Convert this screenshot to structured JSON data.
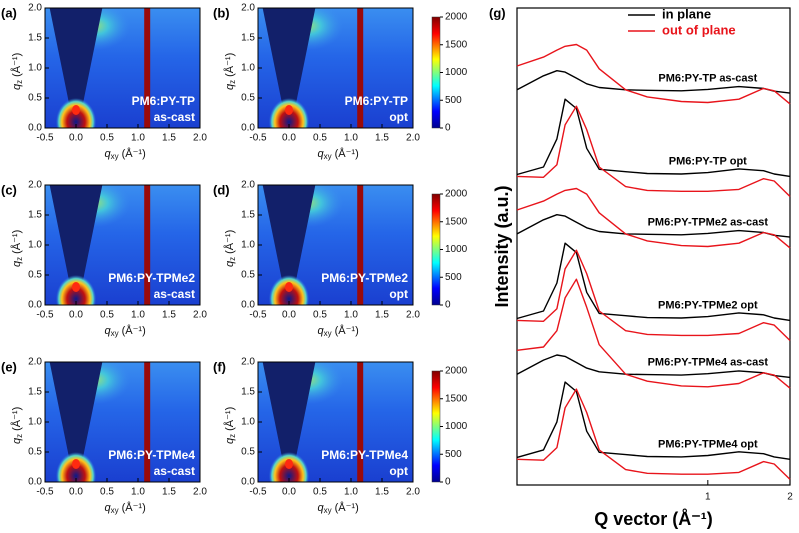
{
  "chart_data": [
    {
      "type": "image",
      "panel_label": "(a)",
      "annotation": [
        "PM6:PY-TP",
        "as-cast"
      ],
      "xlabel": {
        "main": "q",
        "sub": "xy",
        "unit": "(Å⁻¹)"
      },
      "ylabel": {
        "main": "q",
        "sub": "z",
        "unit": "(Å⁻¹)"
      },
      "xlim": [
        -0.5,
        2
      ],
      "ylim": [
        0,
        2
      ],
      "xticks": [
        -0.5,
        {
          "value": 0,
          "label": "0.0"
        },
        0.5,
        {
          "value": 1,
          "label": "1.0"
        },
        1.5,
        {
          "value": 2,
          "label": "2.0"
        }
      ],
      "yticks": [
        {
          "value": 0,
          "label": "0.0"
        },
        0.5,
        {
          "value": 1,
          "label": "1.0"
        },
        1.5,
        {
          "value": 2,
          "label": "2.0"
        }
      ]
    },
    {
      "type": "image",
      "panel_label": "(b)",
      "annotation": [
        "PM6:PY-TP",
        "opt"
      ],
      "xlabel": {
        "main": "q",
        "sub": "xy",
        "unit": "(Å⁻¹)"
      },
      "ylabel": {
        "main": "q",
        "sub": "z",
        "unit": "(Å⁻¹)"
      },
      "xlim": [
        -0.5,
        2
      ],
      "ylim": [
        0,
        2
      ],
      "xticks": [
        -0.5,
        {
          "value": 0,
          "label": "0.0"
        },
        0.5,
        {
          "value": 1,
          "label": "1.0"
        },
        1.5,
        {
          "value": 2,
          "label": "2.0"
        }
      ],
      "yticks": [
        {
          "value": 0,
          "label": "0.0"
        },
        0.5,
        {
          "value": 1,
          "label": "1.0"
        },
        1.5,
        {
          "value": 2,
          "label": "2.0"
        }
      ],
      "clim": [
        0,
        2000
      ],
      "cticks": [
        0,
        500,
        1000,
        1500,
        2000
      ]
    },
    {
      "type": "image",
      "panel_label": "(c)",
      "annotation": [
        "PM6:PY-TPMe2",
        "as-cast"
      ],
      "xlabel": {
        "main": "q",
        "sub": "xy",
        "unit": "(Å⁻¹)"
      },
      "ylabel": {
        "main": "q",
        "sub": "z",
        "unit": "(Å⁻¹)"
      },
      "xlim": [
        -0.5,
        2
      ],
      "ylim": [
        0,
        2
      ],
      "xticks": [
        -0.5,
        {
          "value": 0,
          "label": "0.0"
        },
        0.5,
        {
          "value": 1,
          "label": "1.0"
        },
        1.5,
        {
          "value": 2,
          "label": "2.0"
        }
      ],
      "yticks": [
        {
          "value": 0,
          "label": "0.0"
        },
        0.5,
        {
          "value": 1,
          "label": "1.0"
        },
        1.5,
        {
          "value": 2,
          "label": "2.0"
        }
      ]
    },
    {
      "type": "image",
      "panel_label": "(d)",
      "annotation": [
        "PM6:PY-TPMe2",
        "opt"
      ],
      "xlabel": {
        "main": "q",
        "sub": "xy",
        "unit": "(Å⁻¹)"
      },
      "ylabel": {
        "main": "q",
        "sub": "z",
        "unit": "(Å⁻¹)"
      },
      "xlim": [
        -0.5,
        2
      ],
      "ylim": [
        0,
        2
      ],
      "xticks": [
        -0.5,
        {
          "value": 0,
          "label": "0.0"
        },
        0.5,
        {
          "value": 1,
          "label": "1.0"
        },
        1.5,
        {
          "value": 2,
          "label": "2.0"
        }
      ],
      "yticks": [
        {
          "value": 0,
          "label": "0.0"
        },
        0.5,
        {
          "value": 1,
          "label": "1.0"
        },
        1.5,
        {
          "value": 2,
          "label": "2.0"
        }
      ],
      "clim": [
        0,
        2000
      ],
      "cticks": [
        0,
        500,
        1000,
        1500,
        2000
      ]
    },
    {
      "type": "image",
      "panel_label": "(e)",
      "annotation": [
        "PM6:PY-TPMe4",
        "as-cast"
      ],
      "xlabel": {
        "main": "q",
        "sub": "xy",
        "unit": "(Å⁻¹)"
      },
      "ylabel": {
        "main": "q",
        "sub": "z",
        "unit": "(Å⁻¹)"
      },
      "xlim": [
        -0.5,
        2
      ],
      "ylim": [
        0,
        2
      ],
      "xticks": [
        -0.5,
        {
          "value": 0,
          "label": "0.0"
        },
        0.5,
        {
          "value": 1,
          "label": "1.0"
        },
        1.5,
        {
          "value": 2,
          "label": "2.0"
        }
      ],
      "yticks": [
        {
          "value": 0,
          "label": "0.0"
        },
        0.5,
        {
          "value": 1,
          "label": "1.0"
        },
        1.5,
        {
          "value": 2,
          "label": "2.0"
        }
      ]
    },
    {
      "type": "image",
      "panel_label": "(f)",
      "annotation": [
        "PM6:PY-TPMe4",
        "opt"
      ],
      "xlabel": {
        "main": "q",
        "sub": "xy",
        "unit": "(Å⁻¹)"
      },
      "ylabel": {
        "main": "q",
        "sub": "z",
        "unit": "(Å⁻¹)"
      },
      "xlim": [
        -0.5,
        2
      ],
      "ylim": [
        0,
        2
      ],
      "xticks": [
        -0.5,
        {
          "value": 0,
          "label": "0.0"
        },
        0.5,
        {
          "value": 1,
          "label": "1.0"
        },
        1.5,
        {
          "value": 2,
          "label": "2.0"
        }
      ],
      "yticks": [
        {
          "value": 0,
          "label": "0.0"
        },
        0.5,
        {
          "value": 1,
          "label": "1.0"
        },
        1.5,
        {
          "value": 2,
          "label": "2.0"
        }
      ],
      "clim": [
        0,
        2000
      ],
      "cticks": [
        0,
        500,
        1000,
        1500,
        2000
      ]
    },
    {
      "type": "line",
      "panel_label": "(g)",
      "xlabel": "Q vector (Å⁻¹)",
      "ylabel": "Intensity (a.u.)",
      "log_x": true,
      "xlim": [
        0.2,
        2
      ],
      "xticks": [
        1,
        2
      ],
      "ylim": [
        -2,
        100
      ],
      "legend": [
        {
          "name": "in plane",
          "color": "#000000"
        },
        {
          "name": "out of plane",
          "color": "#e8141b"
        }
      ],
      "x": [
        0.2,
        0.25,
        0.28,
        0.3,
        0.33,
        0.36,
        0.4,
        0.5,
        0.6,
        0.8,
        1.0,
        1.3,
        1.6,
        1.75,
        2.0
      ],
      "samples": [
        {
          "label": "PM6:PY-TP as-cast",
          "in_plane": [
            82.5,
            85.5,
            86.6,
            86.3,
            85.0,
            83.8,
            83.0,
            82.5,
            82.4,
            82.3,
            82.6,
            83.2,
            82.8,
            82.2,
            81.8
          ],
          "out_of_plane": [
            87.6,
            89.5,
            91.0,
            91.8,
            92.2,
            91.0,
            87.0,
            82.5,
            81.0,
            80.0,
            79.8,
            80.5,
            82.8,
            82.3,
            79.5
          ]
        },
        {
          "label": "PM6:PY-TP opt",
          "in_plane": [
            64.4,
            66,
            72,
            80.5,
            78.5,
            70,
            65.5,
            65,
            64.6,
            64.5,
            64.8,
            65.6,
            65.2,
            64.5,
            64.0
          ],
          "out_of_plane": [
            64.0,
            63.8,
            66.5,
            75,
            79.0,
            74,
            66,
            61.8,
            61.0,
            60.8,
            60.8,
            61.2,
            63.5,
            63.0,
            59.7
          ]
        },
        {
          "label": "PM6:PY-TPMe2 as-cast",
          "in_plane": [
            51.7,
            54.7,
            55.8,
            55.5,
            54.2,
            53.0,
            52.2,
            51.7,
            51.6,
            51.5,
            51.8,
            52.4,
            52.0,
            51.4,
            51.0
          ],
          "out_of_plane": [
            56.8,
            58.7,
            60.2,
            61.0,
            61.4,
            60.2,
            56.2,
            51.7,
            50.2,
            49.2,
            49.0,
            49.7,
            52.0,
            51.5,
            48.7
          ]
        },
        {
          "label": "PM6:PY-TPMe2 opt",
          "in_plane": [
            33.6,
            35.2,
            41.2,
            49.7,
            47.7,
            39.2,
            34.7,
            34.2,
            33.8,
            33.7,
            34.0,
            34.8,
            34.4,
            33.7,
            33.2
          ],
          "out_of_plane": [
            33.2,
            33.0,
            35.7,
            44.2,
            48.2,
            43.2,
            35.2,
            31.0,
            30.2,
            30.0,
            30.0,
            30.4,
            32.7,
            32.2,
            28.9
          ]
        },
        {
          "label": "PM6:PY-TPMe4 as-cast",
          "in_plane": [
            21.7,
            24.7,
            25.8,
            25.5,
            24.2,
            23.0,
            22.2,
            21.7,
            21.6,
            21.5,
            21.8,
            22.4,
            22.0,
            21.4,
            21.0
          ],
          "out_of_plane": [
            26.8,
            27.5,
            31.0,
            38.0,
            42.0,
            36.0,
            28.0,
            21.7,
            20.2,
            19.2,
            19.0,
            19.7,
            22.0,
            21.5,
            18.7
          ]
        },
        {
          "label": "PM6:PY-TPMe4 opt",
          "in_plane": [
            3.9,
            5.5,
            11.5,
            20.0,
            18.0,
            9.5,
            5.0,
            4.5,
            4.1,
            4.0,
            4.3,
            5.1,
            4.7,
            4.0,
            3.5
          ],
          "out_of_plane": [
            3.5,
            3.3,
            6.0,
            14.5,
            18.5,
            13.5,
            5.5,
            1.3,
            0.5,
            0.3,
            0.3,
            0.7,
            3.0,
            2.5,
            -0.8
          ]
        }
      ]
    }
  ]
}
